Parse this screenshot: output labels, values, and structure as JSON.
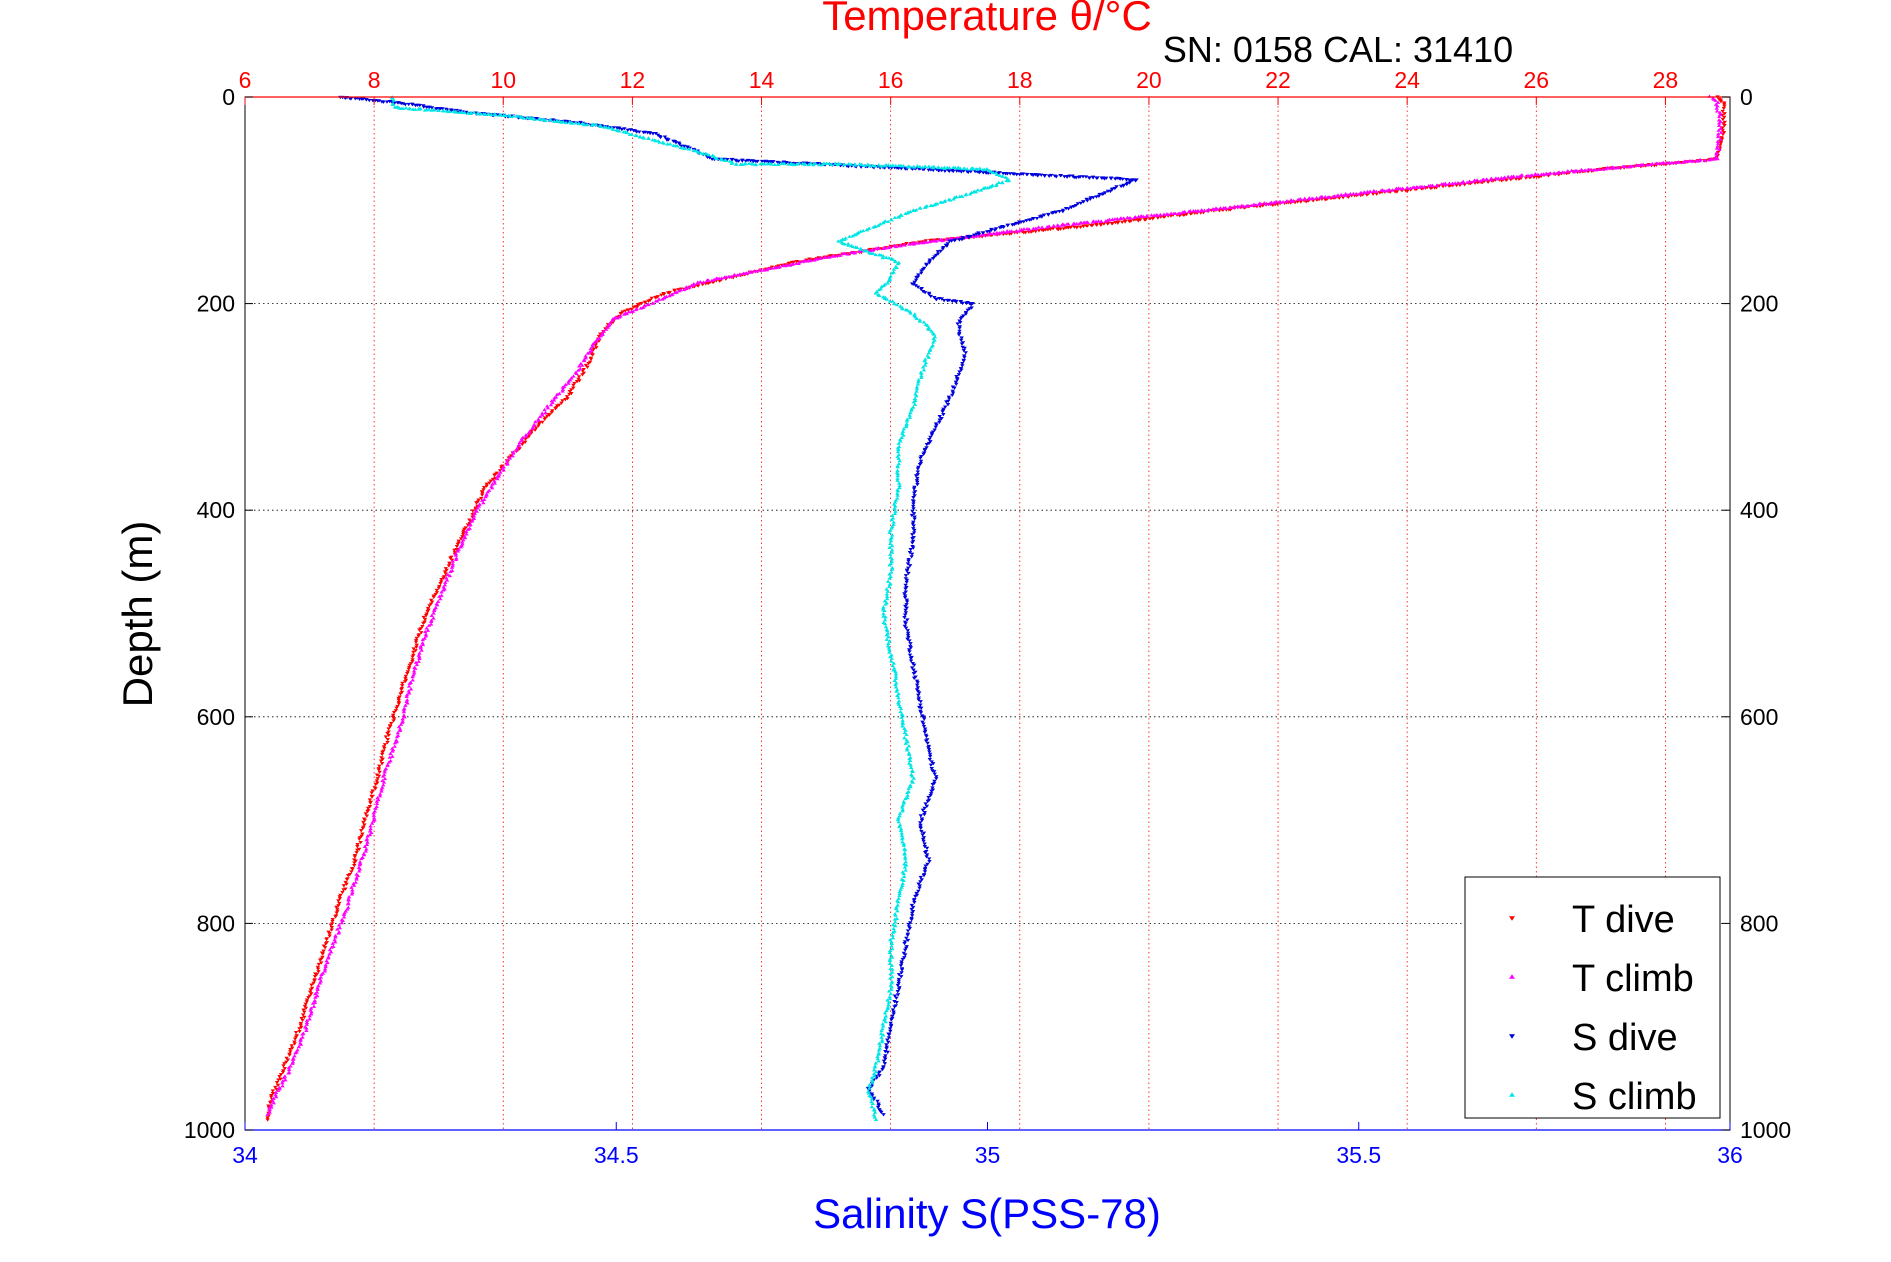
{
  "chart_data": {
    "type": "scatter",
    "title": "Temperature θ/°C",
    "subtitle": "SN: 0158  CAL: 31410",
    "ylabel": "Depth (m)",
    "xlabel_bottom": "Salinity S(PSS-78)",
    "xlabel_top": "Temperature θ/°C",
    "y_axis": {
      "range": [
        0,
        1000
      ],
      "reversed": true,
      "ticks": [
        0,
        200,
        400,
        600,
        800,
        1000
      ]
    },
    "x_bottom_axis": {
      "range": [
        34,
        36
      ],
      "ticks": [
        34,
        34.5,
        35,
        35.5,
        36
      ],
      "tick_labels": [
        "34",
        "34.5",
        "35",
        "35.5",
        "36"
      ]
    },
    "x_top_axis": {
      "range": [
        6,
        29
      ],
      "ticks": [
        6,
        8,
        10,
        12,
        14,
        16,
        18,
        20,
        22,
        24,
        26,
        28
      ],
      "tick_labels": [
        "6",
        "8",
        "10",
        "12",
        "14",
        "16",
        "18",
        "20",
        "22",
        "24",
        "26",
        "28"
      ]
    },
    "grid": {
      "vertical": "on (red dotted, temperature ticks)",
      "horizontal": "on (black dotted, depth ticks)"
    },
    "legend": {
      "placement": "bottom-right",
      "entries": [
        "T dive",
        "T climb",
        "S dive",
        "S climb"
      ]
    },
    "colors": {
      "T dive": "#ff0000",
      "T climb": "#ff00ff",
      "S dive": "#0000dd",
      "S climb": "#00e5e5",
      "title": "#ff0000",
      "bottom_axis": "#0000ff",
      "top_axis": "#ff0000",
      "text": "#000000"
    },
    "series": [
      {
        "name": "T dive",
        "axis": "temperature",
        "marker": "triangle-down",
        "points": [
          [
            28.8,
            0
          ],
          [
            28.9,
            5
          ],
          [
            28.9,
            30
          ],
          [
            28.8,
            60
          ],
          [
            27,
            70
          ],
          [
            24,
            90
          ],
          [
            21,
            110
          ],
          [
            19,
            125
          ],
          [
            16.5,
            140
          ],
          [
            15.5,
            150
          ],
          [
            14.5,
            160
          ],
          [
            13.5,
            175
          ],
          [
            12.5,
            190
          ],
          [
            11.8,
            210
          ],
          [
            11.5,
            230
          ],
          [
            11.3,
            260
          ],
          [
            11,
            290
          ],
          [
            10.5,
            320
          ],
          [
            10.1,
            350
          ],
          [
            9.7,
            380
          ],
          [
            9.4,
            420
          ],
          [
            9.1,
            460
          ],
          [
            8.8,
            500
          ],
          [
            8.6,
            540
          ],
          [
            8.4,
            580
          ],
          [
            8.2,
            620
          ],
          [
            8.05,
            660
          ],
          [
            7.85,
            700
          ],
          [
            7.7,
            740
          ],
          [
            7.45,
            780
          ],
          [
            7.25,
            820
          ],
          [
            7.05,
            860
          ],
          [
            6.85,
            900
          ],
          [
            6.6,
            940
          ],
          [
            6.4,
            970
          ],
          [
            6.35,
            990
          ]
        ]
      },
      {
        "name": "T climb",
        "axis": "temperature",
        "marker": "triangle-up",
        "points": [
          [
            28.7,
            0
          ],
          [
            28.8,
            5
          ],
          [
            28.85,
            30
          ],
          [
            28.8,
            60
          ],
          [
            26,
            75
          ],
          [
            23,
            95
          ],
          [
            20.5,
            112
          ],
          [
            18.5,
            125
          ],
          [
            16,
            145
          ],
          [
            15,
            155
          ],
          [
            14,
            168
          ],
          [
            13,
            180
          ],
          [
            12.3,
            200
          ],
          [
            11.7,
            215
          ],
          [
            11.4,
            240
          ],
          [
            11.1,
            270
          ],
          [
            10.7,
            300
          ],
          [
            10.2,
            340
          ],
          [
            9.9,
            370
          ],
          [
            9.6,
            400
          ],
          [
            9.3,
            440
          ],
          [
            9.05,
            480
          ],
          [
            8.8,
            520
          ],
          [
            8.6,
            560
          ],
          [
            8.45,
            600
          ],
          [
            8.3,
            630
          ],
          [
            8.1,
            670
          ],
          [
            7.95,
            710
          ],
          [
            7.75,
            750
          ],
          [
            7.55,
            790
          ],
          [
            7.3,
            830
          ],
          [
            7.1,
            870
          ],
          [
            6.9,
            910
          ],
          [
            6.7,
            940
          ],
          [
            6.45,
            970
          ],
          [
            6.35,
            985
          ]
        ]
      },
      {
        "name": "S dive",
        "axis": "salinity",
        "marker": "triangle-down",
        "points": [
          [
            34.13,
            0
          ],
          [
            34.2,
            5
          ],
          [
            34.3,
            15
          ],
          [
            34.45,
            25
          ],
          [
            34.55,
            35
          ],
          [
            34.6,
            50
          ],
          [
            34.63,
            60
          ],
          [
            35.2,
            80
          ],
          [
            35.1,
            110
          ],
          [
            34.95,
            140
          ],
          [
            34.92,
            160
          ],
          [
            34.9,
            180
          ],
          [
            34.93,
            195
          ],
          [
            34.98,
            200
          ],
          [
            34.96,
            220
          ],
          [
            34.97,
            250
          ],
          [
            34.96,
            270
          ],
          [
            34.95,
            290
          ],
          [
            34.93,
            320
          ],
          [
            34.91,
            350
          ],
          [
            34.9,
            390
          ],
          [
            34.9,
            430
          ],
          [
            34.89,
            470
          ],
          [
            34.89,
            510
          ],
          [
            34.9,
            550
          ],
          [
            34.91,
            590
          ],
          [
            34.92,
            630
          ],
          [
            34.93,
            660
          ],
          [
            34.91,
            700
          ],
          [
            34.92,
            740
          ],
          [
            34.9,
            780
          ],
          [
            34.89,
            820
          ],
          [
            34.88,
            860
          ],
          [
            34.87,
            900
          ],
          [
            34.86,
            940
          ],
          [
            34.84,
            960
          ],
          [
            34.86,
            985
          ]
        ]
      },
      {
        "name": "S climb",
        "axis": "salinity",
        "marker": "triangle-up",
        "points": [
          [
            34.2,
            0
          ],
          [
            34.2,
            10
          ],
          [
            34.35,
            18
          ],
          [
            34.48,
            28
          ],
          [
            34.55,
            42
          ],
          [
            34.62,
            55
          ],
          [
            34.66,
            65
          ],
          [
            34.8,
            65
          ],
          [
            35,
            70
          ],
          [
            35.03,
            80
          ],
          [
            34.97,
            95
          ],
          [
            34.9,
            110
          ],
          [
            34.85,
            125
          ],
          [
            34.8,
            140
          ],
          [
            34.88,
            160
          ],
          [
            34.87,
            175
          ],
          [
            34.85,
            190
          ],
          [
            34.9,
            210
          ],
          [
            34.93,
            230
          ],
          [
            34.92,
            250
          ],
          [
            34.91,
            270
          ],
          [
            34.9,
            300
          ],
          [
            34.88,
            340
          ],
          [
            34.88,
            380
          ],
          [
            34.87,
            420
          ],
          [
            34.87,
            460
          ],
          [
            34.86,
            500
          ],
          [
            34.87,
            540
          ],
          [
            34.88,
            580
          ],
          [
            34.89,
            620
          ],
          [
            34.9,
            660
          ],
          [
            34.88,
            700
          ],
          [
            34.89,
            740
          ],
          [
            34.88,
            780
          ],
          [
            34.87,
            820
          ],
          [
            34.87,
            860
          ],
          [
            34.86,
            900
          ],
          [
            34.85,
            940
          ],
          [
            34.84,
            960
          ],
          [
            34.85,
            990
          ]
        ]
      }
    ]
  }
}
